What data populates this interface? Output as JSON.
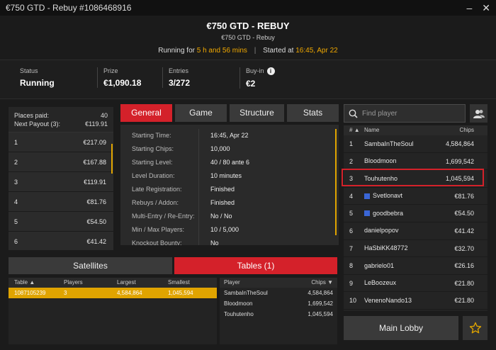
{
  "window": {
    "title": "€750 GTD - Rebuy #1086468916",
    "minimize": "–",
    "close": "✕"
  },
  "header": {
    "title": "€750 GTD - REBUY",
    "subtitle": "€750 GTD - Rebuy",
    "running_label": "Running for",
    "running_value": "5 h and 56 mins",
    "separator": "|",
    "started_label": "Started at",
    "started_value": "16:45, Apr 22"
  },
  "stats": {
    "status_label": "Status",
    "status_value": "Running",
    "prize_label": "Prize",
    "prize_value": "€1,090.18",
    "entries_label": "Entries",
    "entries_value": "3/272",
    "buyin_label": "Buy-in",
    "buyin_value": "€2"
  },
  "payouts": {
    "places_paid_label": "Places paid:",
    "places_paid_value": "40",
    "next_payout_label": "Next Payout (3):",
    "next_payout_value": "€119.91",
    "rows": [
      {
        "place": "1",
        "amount": "€217.09"
      },
      {
        "place": "2",
        "amount": "€167.88"
      },
      {
        "place": "3",
        "amount": "€119.91"
      },
      {
        "place": "4",
        "amount": "€81.76"
      },
      {
        "place": "5",
        "amount": "€54.50"
      },
      {
        "place": "6",
        "amount": "€41.42"
      }
    ]
  },
  "tabs": [
    "General",
    "Game",
    "Structure",
    "Stats"
  ],
  "general": [
    {
      "k": "Starting Time:",
      "v": "16:45, Apr 22"
    },
    {
      "k": "Starting Chips:",
      "v": "10,000"
    },
    {
      "k": "Starting Level:",
      "v": "40 / 80 ante 6"
    },
    {
      "k": "Level Duration:",
      "v": "10 minutes"
    },
    {
      "k": "Late Registration:",
      "v": "Finished"
    },
    {
      "k": "Rebuys / Addon:",
      "v": "Finished"
    },
    {
      "k": "Multi-Entry / Re-Entry:",
      "v": "No / No"
    },
    {
      "k": "Min / Max Players:",
      "v": "10 / 5,000"
    },
    {
      "k": "Knockout Bounty:",
      "v": "No"
    }
  ],
  "bottom_tabs": [
    "Satellites",
    "Tables (1)"
  ],
  "tables": {
    "headers": {
      "table": "Table",
      "sort": "▲",
      "players": "Players",
      "largest": "Largest",
      "smallest": "Smallest"
    },
    "rows": [
      {
        "table": "1087105239",
        "players": "3",
        "largest": "4,584,864",
        "smallest": "1,045,594"
      }
    ]
  },
  "table_players": {
    "headers": {
      "player": "Player",
      "chips": "Chips",
      "sort": "▼"
    },
    "rows": [
      {
        "name": "SambaInTheSoul",
        "chips": "4,584,864"
      },
      {
        "name": "Bloodmoon",
        "chips": "1,699,542"
      },
      {
        "name": "Touhutenho",
        "chips": "1,045,594"
      }
    ]
  },
  "search": {
    "placeholder": "Find player"
  },
  "players": {
    "headers": {
      "rank": "#",
      "sort": "▲",
      "name": "Name",
      "chips": "Chips"
    },
    "rows": [
      {
        "rank": "1",
        "name": "SambaInTheSoul",
        "chips": "4,584,864",
        "flag": false
      },
      {
        "rank": "2",
        "name": "Bloodmoon",
        "chips": "1,699,542",
        "flag": false
      },
      {
        "rank": "3",
        "name": "Touhutenho",
        "chips": "1,045,594",
        "flag": false
      },
      {
        "rank": "4",
        "name": "Svetlonavt",
        "chips": "€81.76",
        "flag": true
      },
      {
        "rank": "5",
        "name": "goodbebra",
        "chips": "€54.50",
        "flag": true
      },
      {
        "rank": "6",
        "name": "danielpopov",
        "chips": "€41.42",
        "flag": false
      },
      {
        "rank": "7",
        "name": "HaSbiKK48772",
        "chips": "€32.70",
        "flag": false
      },
      {
        "rank": "8",
        "name": "gabrielo01",
        "chips": "€26.16",
        "flag": false
      },
      {
        "rank": "9",
        "name": "LeBoozeux",
        "chips": "€21.80",
        "flag": false
      },
      {
        "rank": "10",
        "name": "VenenoNando13",
        "chips": "€21.80",
        "flag": false
      }
    ]
  },
  "main_lobby": "Main Lobby",
  "colors": {
    "accent_red": "#d4212a",
    "accent_orange": "#f0a800"
  }
}
